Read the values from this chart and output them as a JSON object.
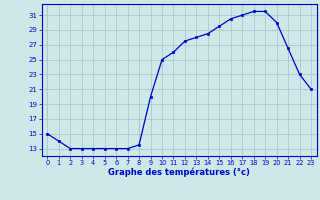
{
  "hours": [
    0,
    1,
    2,
    3,
    4,
    5,
    6,
    7,
    8,
    9,
    10,
    11,
    12,
    13,
    14,
    15,
    16,
    17,
    18,
    19,
    20,
    21,
    22,
    23
  ],
  "temps": [
    15,
    14,
    13,
    13,
    13,
    13,
    13,
    13,
    13.5,
    20,
    25,
    26,
    27.5,
    28,
    28.5,
    29.5,
    30.5,
    31,
    31.5,
    31.5,
    30,
    26.5,
    23,
    21
  ],
  "line_color": "#0000cc",
  "bg_color": "#cce8e8",
  "grid_color": "#aac8c8",
  "xlabel": "Graphe des températures (°c)",
  "yticks": [
    13,
    15,
    17,
    19,
    21,
    23,
    25,
    27,
    29,
    31
  ],
  "xticks": [
    0,
    1,
    2,
    3,
    4,
    5,
    6,
    7,
    8,
    9,
    10,
    11,
    12,
    13,
    14,
    15,
    16,
    17,
    18,
    19,
    20,
    21,
    22,
    23
  ],
  "xlim": [
    -0.5,
    23.5
  ],
  "ylim": [
    12.0,
    32.5
  ]
}
